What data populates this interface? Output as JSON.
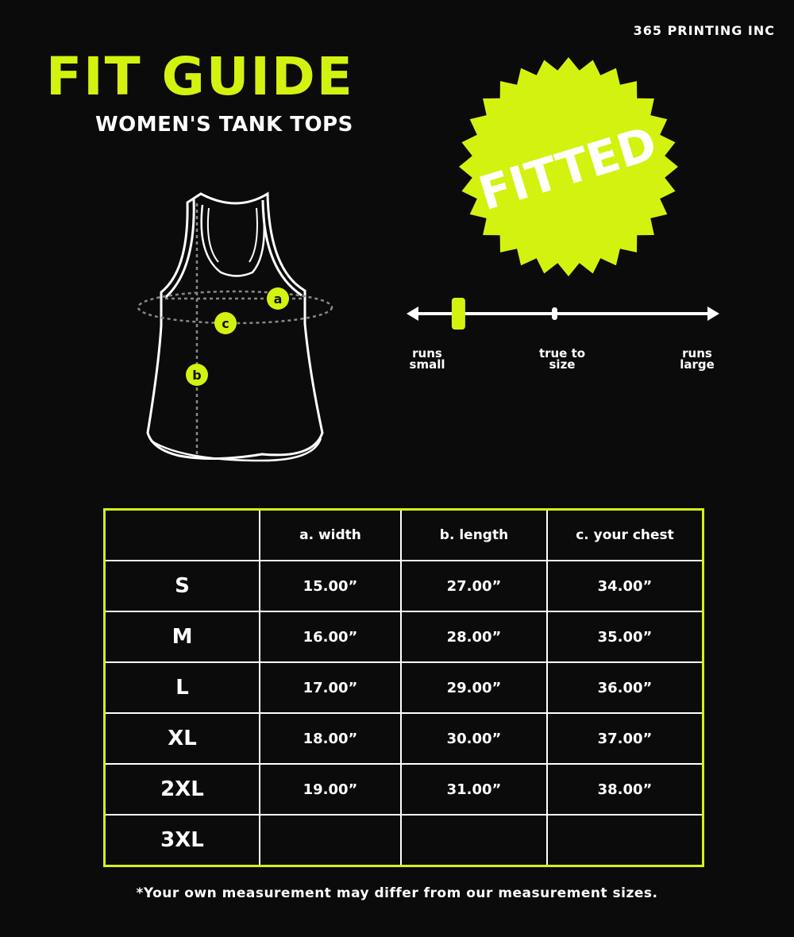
{
  "brand": "365 PRINTING INC",
  "title": "FIT GUIDE",
  "subtitle": "WOMEN'S TANK TOPS",
  "colors": {
    "accent": "#d4f20f",
    "background": "#0b0b0b",
    "text": "#ffffff"
  },
  "badge": {
    "label": "FITTED",
    "shape": "starburst"
  },
  "diagram": {
    "markers": [
      "a",
      "b",
      "c"
    ]
  },
  "fit_scale": {
    "labels": [
      {
        "line1": "runs",
        "line2": "small"
      },
      {
        "line1": "true to",
        "line2": "size"
      },
      {
        "line1": "runs",
        "line2": "large"
      }
    ],
    "position": 0.16
  },
  "table": {
    "headers": [
      "",
      "a. width",
      "b. length",
      "c. your chest"
    ],
    "rows": [
      {
        "size": "S",
        "width": "15.00”",
        "length": "27.00”",
        "chest": "34.00”"
      },
      {
        "size": "M",
        "width": "16.00”",
        "length": "28.00”",
        "chest": "35.00”"
      },
      {
        "size": "L",
        "width": "17.00”",
        "length": "29.00”",
        "chest": "36.00”"
      },
      {
        "size": "XL",
        "width": "18.00”",
        "length": "30.00”",
        "chest": "37.00”"
      },
      {
        "size": "2XL",
        "width": "19.00”",
        "length": "31.00”",
        "chest": "38.00”"
      },
      {
        "size": "3XL",
        "width": "",
        "length": "",
        "chest": ""
      }
    ]
  },
  "footnote": "*Your own measurement may differ from our measurement sizes."
}
